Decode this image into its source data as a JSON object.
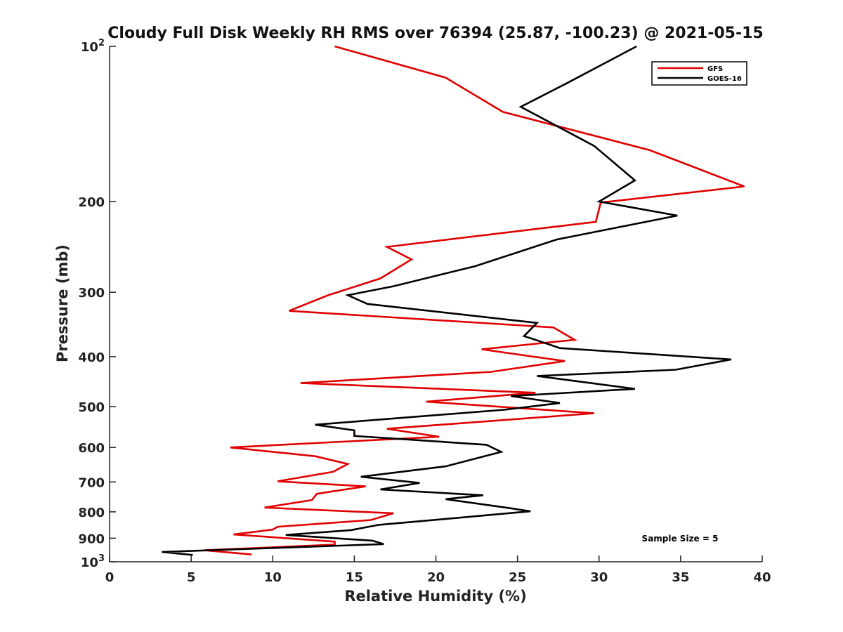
{
  "chart_data": {
    "type": "line",
    "title": "Cloudy Full Disk Weekly RH RMS over 76394 (25.87, -100.23) @ 2021-05-15",
    "xlabel": "Relative Humidity (%)",
    "ylabel": "Pressure (mb)",
    "xlim": [
      0,
      40
    ],
    "ylim": [
      100,
      1000
    ],
    "yscale": "log",
    "y_reversed": true,
    "x_ticks": [
      0,
      5,
      10,
      15,
      20,
      25,
      30,
      35,
      40
    ],
    "x_tick_labels": [
      "0",
      "5",
      "10",
      "15",
      "20",
      "25",
      "30",
      "35",
      "40"
    ],
    "y_ticks": [
      100,
      200,
      300,
      400,
      500,
      600,
      700,
      800,
      900,
      1000
    ],
    "y_tick_labels": [
      {
        "base": "10",
        "exp": "2"
      },
      {
        "base": "200",
        "exp": ""
      },
      {
        "base": "300",
        "exp": ""
      },
      {
        "base": "400",
        "exp": ""
      },
      {
        "base": "500",
        "exp": ""
      },
      {
        "base": "600",
        "exp": ""
      },
      {
        "base": "700",
        "exp": ""
      },
      {
        "base": "800",
        "exp": ""
      },
      {
        "base": "900",
        "exp": ""
      },
      {
        "base": "10",
        "exp": "3"
      }
    ],
    "grid": false,
    "legend_position": "top-right",
    "annotation": "Sample Size = 5",
    "series": [
      {
        "name": "GFS",
        "color": "#e00000",
        "points": [
          [
            13.8,
            100
          ],
          [
            20.6,
            115
          ],
          [
            24.1,
            134
          ],
          [
            33.1,
            159
          ],
          [
            38.9,
            187
          ],
          [
            30.1,
            201
          ],
          [
            29.8,
            219
          ],
          [
            17.0,
            245
          ],
          [
            18.5,
            259
          ],
          [
            16.6,
            282
          ],
          [
            13.4,
            304
          ],
          [
            11.0,
            326
          ],
          [
            27.2,
            351
          ],
          [
            28.5,
            371
          ],
          [
            22.8,
            387
          ],
          [
            27.9,
            408
          ],
          [
            23.4,
            428
          ],
          [
            11.7,
            450
          ],
          [
            26.1,
            470
          ],
          [
            19.4,
            489
          ],
          [
            29.7,
            515
          ],
          [
            17.0,
            552
          ],
          [
            20.2,
            572
          ],
          [
            7.4,
            600
          ],
          [
            12.6,
            624
          ],
          [
            14.6,
            646
          ],
          [
            13.7,
            669
          ],
          [
            10.3,
            698
          ],
          [
            15.7,
            714
          ],
          [
            12.7,
            738
          ],
          [
            12.4,
            759
          ],
          [
            9.5,
            785
          ],
          [
            17.4,
            805
          ],
          [
            16.0,
            830
          ],
          [
            10.3,
            855
          ],
          [
            10.0,
            866
          ],
          [
            7.6,
            885
          ],
          [
            13.8,
            914
          ],
          [
            13.8,
            926
          ],
          [
            5.8,
            950
          ],
          [
            8.7,
            968
          ]
        ]
      },
      {
        "name": "GOES-16",
        "color": "#000000",
        "points": [
          [
            32.3,
            100
          ],
          [
            28.0,
            118
          ],
          [
            25.2,
            131
          ],
          [
            29.7,
            156
          ],
          [
            32.2,
            182
          ],
          [
            30.0,
            200
          ],
          [
            34.8,
            213
          ],
          [
            27.4,
            237
          ],
          [
            22.4,
            267
          ],
          [
            17.4,
            292
          ],
          [
            14.6,
            304
          ],
          [
            15.8,
            316
          ],
          [
            26.2,
            344
          ],
          [
            25.4,
            365
          ],
          [
            26.0,
            370
          ],
          [
            27.6,
            385
          ],
          [
            38.1,
            405
          ],
          [
            34.7,
            424
          ],
          [
            26.2,
            436
          ],
          [
            32.2,
            462
          ],
          [
            24.6,
            477
          ],
          [
            27.6,
            492
          ],
          [
            24.2,
            507
          ],
          [
            12.6,
            542
          ],
          [
            15.0,
            556
          ],
          [
            15.0,
            570
          ],
          [
            23.1,
            593
          ],
          [
            24.0,
            612
          ],
          [
            20.6,
            653
          ],
          [
            15.4,
            684
          ],
          [
            19.0,
            703
          ],
          [
            16.6,
            724
          ],
          [
            22.9,
            743
          ],
          [
            20.6,
            756
          ],
          [
            24.4,
            786
          ],
          [
            25.8,
            798
          ],
          [
            20.2,
            828
          ],
          [
            16.5,
            848
          ],
          [
            14.8,
            868
          ],
          [
            10.8,
            887
          ],
          [
            16.1,
            910
          ],
          [
            16.8,
            924
          ],
          [
            3.2,
            957
          ],
          [
            5.1,
            970
          ]
        ]
      }
    ]
  }
}
